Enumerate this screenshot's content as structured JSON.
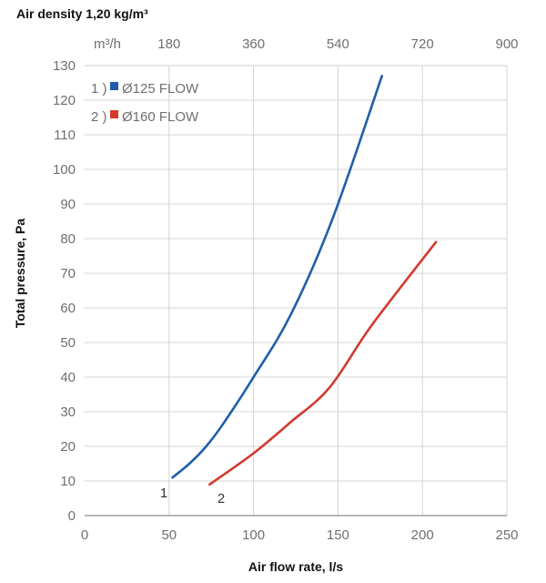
{
  "chart_data": {
    "type": "line",
    "title": "Air density 1,20 kg/m³",
    "xlabel": "Air flow rate, l/s",
    "ylabel": "Total pressure, Pa",
    "x_ticks": [
      "0",
      "50",
      "100",
      "150",
      "200",
      "250"
    ],
    "y_ticks": [
      "0",
      "10",
      "20",
      "30",
      "40",
      "50",
      "60",
      "70",
      "80",
      "90",
      "100",
      "110",
      "120",
      "130"
    ],
    "xlim": [
      0,
      250
    ],
    "ylim": [
      0,
      130
    ],
    "secondary_x_axis": {
      "unit_label": "m³/h",
      "ticks": [
        "180",
        "360",
        "540",
        "720",
        "900"
      ],
      "tick_values": [
        180,
        360,
        540,
        720,
        900
      ],
      "factor_to_primary": 3.6
    },
    "grid": true,
    "legend_position": "top-left",
    "series": [
      {
        "name": "Ø125 FLOW",
        "legend_number": "1 )",
        "curve_label": "1",
        "color": "#1f5fa8",
        "x": [
          52,
          62,
          72,
          82,
          100,
          122,
          147,
          176
        ],
        "y": [
          11,
          15,
          20,
          26.5,
          40,
          58,
          86,
          127
        ]
      },
      {
        "name": "Ø160 FLOW",
        "legend_number": "2 )",
        "curve_label": "2",
        "color": "#d23a2e",
        "x": [
          74,
          100,
          122,
          145,
          170,
          208
        ],
        "y": [
          9,
          18,
          27,
          37,
          55,
          79
        ]
      }
    ]
  }
}
